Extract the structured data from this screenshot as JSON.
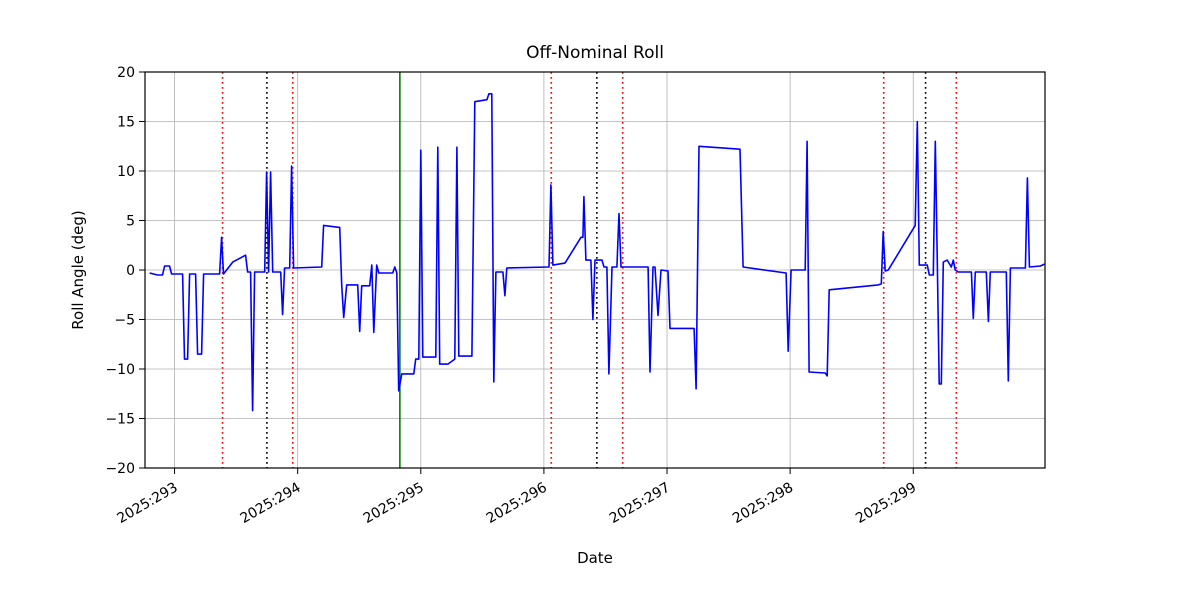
{
  "chart_data": {
    "type": "line",
    "title": "Off-Nominal Roll",
    "xlabel": "Date",
    "ylabel": "Roll Angle (deg)",
    "xlim": [
      292.76,
      300.07
    ],
    "ylim": [
      -20,
      20
    ],
    "grid": true,
    "grid_color": "#b0b0b0",
    "background": "#ffffff",
    "line_color": "#0000ff",
    "xticks": [
      {
        "value": 293,
        "label": "2025:293"
      },
      {
        "value": 294,
        "label": "2025:294"
      },
      {
        "value": 295,
        "label": "2025:295"
      },
      {
        "value": 296,
        "label": "2025:296"
      },
      {
        "value": 297,
        "label": "2025:297"
      },
      {
        "value": 298,
        "label": "2025:298"
      },
      {
        "value": 299,
        "label": "2025:299"
      }
    ],
    "yticks": [
      {
        "value": -20,
        "label": "−20"
      },
      {
        "value": -15,
        "label": "−15"
      },
      {
        "value": -10,
        "label": "−10"
      },
      {
        "value": -5,
        "label": "−5"
      },
      {
        "value": 0,
        "label": "0"
      },
      {
        "value": 5,
        "label": "5"
      },
      {
        "value": 10,
        "label": "10"
      },
      {
        "value": 15,
        "label": "15"
      },
      {
        "value": 20,
        "label": "20"
      }
    ],
    "vlines": [
      {
        "x": 293.39,
        "color": "#ff0000",
        "style": "dotted"
      },
      {
        "x": 293.75,
        "color": "#000000",
        "style": "dotted"
      },
      {
        "x": 293.96,
        "color": "#ff0000",
        "style": "dotted"
      },
      {
        "x": 294.83,
        "color": "#008000",
        "style": "solid"
      },
      {
        "x": 296.06,
        "color": "#ff0000",
        "style": "dotted"
      },
      {
        "x": 296.43,
        "color": "#000000",
        "style": "dotted"
      },
      {
        "x": 296.64,
        "color": "#ff0000",
        "style": "dotted"
      },
      {
        "x": 298.76,
        "color": "#ff0000",
        "style": "dotted"
      },
      {
        "x": 299.1,
        "color": "#000000",
        "style": "dotted"
      },
      {
        "x": 299.35,
        "color": "#ff0000",
        "style": "dotted"
      }
    ],
    "series": [
      {
        "name": "off-nominal-roll",
        "color": "#0000ff",
        "x": [
          292.797,
          292.862,
          292.902,
          292.919,
          292.959,
          292.976,
          293.065,
          293.081,
          293.106,
          293.122,
          293.171,
          293.187,
          293.22,
          293.236,
          293.366,
          293.382,
          293.398,
          293.472,
          293.577,
          293.593,
          293.618,
          293.634,
          293.65,
          293.732,
          293.748,
          293.764,
          293.78,
          293.797,
          293.862,
          293.878,
          293.894,
          293.935,
          293.951,
          293.967,
          294.195,
          294.211,
          294.341,
          294.358,
          294.374,
          294.398,
          294.488,
          294.504,
          294.52,
          294.585,
          294.602,
          294.618,
          294.642,
          294.659,
          294.772,
          294.789,
          294.805,
          294.821,
          294.846,
          294.943,
          294.959,
          294.984,
          295.0,
          295.016,
          295.122,
          295.138,
          295.154,
          295.22,
          295.276,
          295.293,
          295.309,
          295.415,
          295.439,
          295.537,
          295.553,
          295.577,
          295.593,
          295.61,
          295.667,
          295.683,
          295.699,
          296.041,
          296.057,
          296.073,
          296.171,
          296.301,
          296.317,
          296.325,
          296.341,
          296.382,
          296.398,
          296.415,
          296.472,
          296.488,
          296.512,
          296.528,
          296.553,
          296.593,
          296.61,
          296.626,
          296.846,
          296.862,
          296.886,
          296.902,
          296.927,
          296.951,
          297.008,
          297.024,
          297.22,
          297.236,
          297.26,
          297.593,
          297.618,
          297.967,
          297.984,
          298.008,
          298.122,
          298.138,
          298.154,
          298.285,
          298.301,
          298.317,
          298.715,
          298.74,
          298.756,
          298.772,
          298.797,
          299.016,
          299.033,
          299.049,
          299.114,
          299.13,
          299.163,
          299.179,
          299.195,
          299.211,
          299.228,
          299.244,
          299.276,
          299.309,
          299.325,
          299.341,
          299.366,
          299.472,
          299.488,
          299.504,
          299.593,
          299.61,
          299.626,
          299.756,
          299.772,
          299.789,
          299.911,
          299.927,
          299.943,
          300.033,
          300.065
        ],
        "y": [
          -0.3,
          -0.5,
          -0.5,
          0.4,
          0.4,
          -0.4,
          -0.4,
          -9.0,
          -9.0,
          -0.4,
          -0.4,
          -8.5,
          -8.5,
          -0.4,
          -0.4,
          3.3,
          -0.4,
          0.8,
          1.5,
          -0.2,
          -0.2,
          -14.2,
          -0.2,
          -0.2,
          9.9,
          -0.2,
          9.9,
          -0.2,
          -0.2,
          -4.5,
          0.2,
          0.2,
          10.5,
          0.2,
          0.3,
          4.5,
          4.3,
          -1.5,
          -4.8,
          -1.5,
          -1.5,
          -6.2,
          -1.6,
          -1.6,
          0.5,
          -6.3,
          0.5,
          -0.3,
          -0.3,
          0.3,
          -0.3,
          -12.2,
          -10.5,
          -10.5,
          -9.0,
          -9.0,
          12.1,
          -8.8,
          -8.8,
          12.4,
          -9.5,
          -9.5,
          -9.0,
          12.4,
          -8.7,
          -8.7,
          17.0,
          17.2,
          17.8,
          17.8,
          -11.3,
          -0.2,
          -0.2,
          -2.6,
          0.2,
          0.3,
          8.6,
          0.5,
          0.7,
          3.3,
          3.3,
          7.4,
          1.0,
          1.0,
          -5.0,
          1.0,
          1.0,
          0.3,
          0.3,
          -10.5,
          0.3,
          0.3,
          5.7,
          0.3,
          0.3,
          -10.3,
          0.3,
          0.3,
          -4.6,
          0.0,
          -0.1,
          -5.9,
          -5.9,
          -12.0,
          12.5,
          12.2,
          0.3,
          -0.3,
          -8.2,
          0.0,
          0.0,
          13.0,
          -10.3,
          -10.4,
          -10.7,
          -2.0,
          -1.5,
          -1.4,
          3.9,
          -0.1,
          0.0,
          4.5,
          15.0,
          0.5,
          0.5,
          -0.5,
          -0.5,
          13.0,
          0.8,
          -11.5,
          -11.5,
          0.8,
          1.0,
          0.3,
          1.0,
          0.0,
          -0.2,
          -0.2,
          -4.9,
          -0.2,
          -0.2,
          -5.2,
          -0.2,
          -0.2,
          -11.2,
          0.2,
          0.2,
          9.3,
          0.3,
          0.4,
          0.6
        ]
      }
    ]
  }
}
